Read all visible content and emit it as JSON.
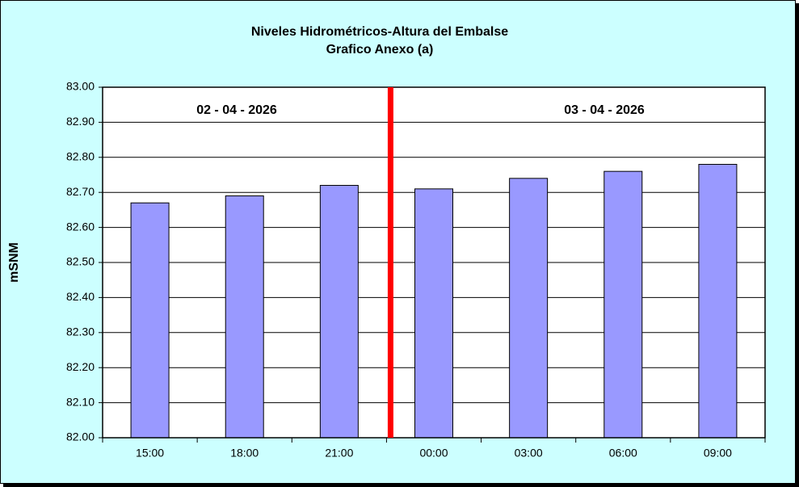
{
  "chart_data": {
    "type": "bar",
    "title": "Niveles Hidrométricos-Altura del Embalse",
    "subtitle": "Grafico Anexo (a)",
    "y_label": "mSNM",
    "annotations": [
      "02 - 04 - 2026",
      "03 - 04 - 2026"
    ],
    "categories": [
      "15:00",
      "18:00",
      "21:00",
      "00:00",
      "03:00",
      "06:00",
      "09:00"
    ],
    "values": [
      82.67,
      82.69,
      82.72,
      82.71,
      82.74,
      82.76,
      82.78
    ],
    "color": "#9999ff",
    "ylim": [
      82.0,
      83.0
    ],
    "yticks": [
      {
        "value": 82.0,
        "label": "82.00"
      },
      {
        "value": 82.1,
        "label": "82.10"
      },
      {
        "value": 82.2,
        "label": "82.20"
      },
      {
        "value": 82.3,
        "label": "82.30"
      },
      {
        "value": 82.4,
        "label": "82.40"
      },
      {
        "value": 82.5,
        "label": "82.50"
      },
      {
        "value": 82.6,
        "label": "82.60"
      },
      {
        "value": 82.7,
        "label": "82.70"
      },
      {
        "value": 82.8,
        "label": "82.80"
      },
      {
        "value": 82.9,
        "label": "82.90"
      },
      {
        "value": 83.0,
        "label": "83.00"
      }
    ],
    "grid": true
  }
}
